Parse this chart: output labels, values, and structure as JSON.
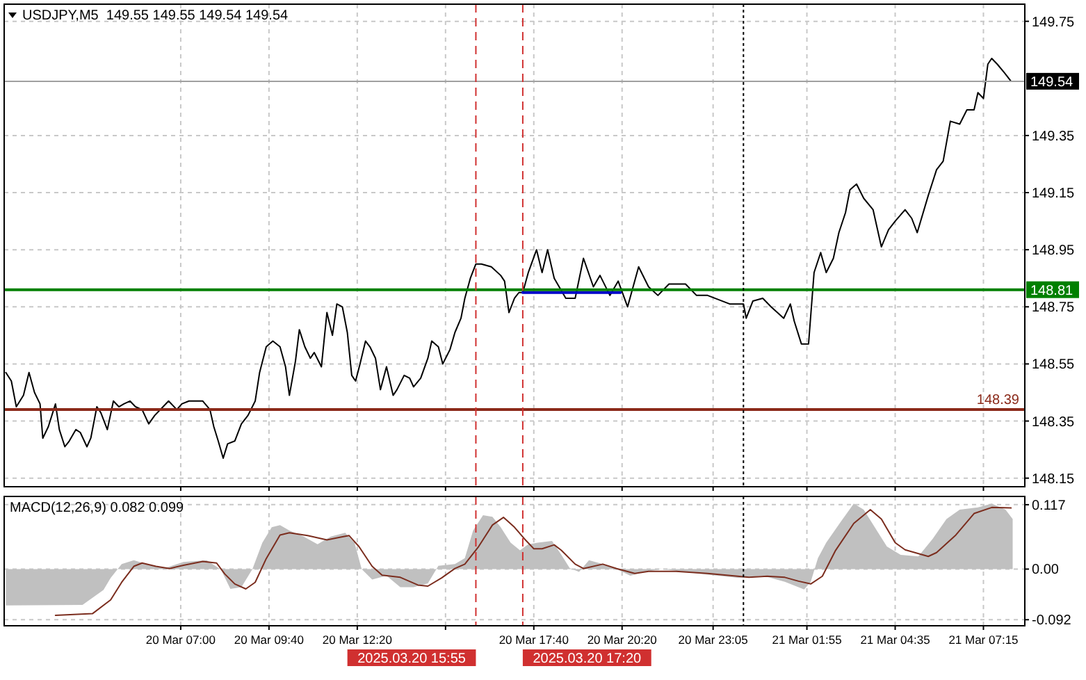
{
  "chart_data": [
    {
      "type": "line",
      "title": "USDJPY,M5  149.55 149.55 149.54 149.54",
      "xlim": [
        "2025-03-20T01:40",
        "2025-03-21T08:30"
      ],
      "xticks": [
        {
          "value": "2025-03-20T07:00",
          "label": null
        },
        {
          "value": "2025-03-20T09:40",
          "label": null
        },
        {
          "value": "2025-03-20T12:20",
          "label": null
        },
        {
          "value": "2025-03-20T15:00",
          "label": null
        },
        {
          "value": "2025-03-20T17:40",
          "label": null
        },
        {
          "value": "2025-03-20T20:20",
          "label": null
        },
        {
          "value": "2025-03-20T23:05",
          "label": null
        },
        {
          "value": "2025-03-21T01:55",
          "label": null
        },
        {
          "value": "2025-03-21T04:35",
          "label": null
        },
        {
          "value": "2025-03-21T07:15",
          "label": null
        }
      ],
      "ylim": [
        148.12,
        149.81
      ],
      "yticks": [
        148.15,
        148.35,
        148.55,
        148.75,
        148.95,
        149.15,
        149.35,
        149.75
      ],
      "grid": true,
      "tick_labels": "y",
      "series": [
        {
          "color": "#000000",
          "x": [
            "2025-03-20T01:43",
            "2025-03-20T01:53",
            "2025-03-20T02:02",
            "2025-03-20T02:15",
            "2025-03-20T02:25",
            "2025-03-20T02:35",
            "2025-03-20T02:45",
            "2025-03-20T02:50",
            "2025-03-20T03:00",
            "2025-03-20T03:13",
            "2025-03-20T03:20",
            "2025-03-20T03:30",
            "2025-03-20T03:38",
            "2025-03-20T03:50",
            "2025-03-20T03:58",
            "2025-03-20T04:10",
            "2025-03-20T04:17",
            "2025-03-20T04:28",
            "2025-03-20T04:35",
            "2025-03-20T04:47",
            "2025-03-20T04:58",
            "2025-03-20T05:08",
            "2025-03-20T05:17",
            "2025-03-20T05:28",
            "2025-03-20T05:38",
            "2025-03-20T05:50",
            "2025-03-20T06:02",
            "2025-03-20T06:13",
            "2025-03-20T06:28",
            "2025-03-20T06:38",
            "2025-03-20T06:53",
            "2025-03-20T07:02",
            "2025-03-20T07:15",
            "2025-03-20T07:28",
            "2025-03-20T07:40",
            "2025-03-20T07:53",
            "2025-03-20T08:00",
            "2025-03-20T08:08",
            "2025-03-20T08:17",
            "2025-03-20T08:25",
            "2025-03-20T08:38",
            "2025-03-20T08:50",
            "2025-03-20T09:02",
            "2025-03-20T09:15",
            "2025-03-20T09:23",
            "2025-03-20T09:35",
            "2025-03-20T09:47",
            "2025-03-20T10:00",
            "2025-03-20T10:10",
            "2025-03-20T10:17",
            "2025-03-20T10:28",
            "2025-03-20T10:35",
            "2025-03-20T10:45",
            "2025-03-20T10:55",
            "2025-03-20T11:02",
            "2025-03-20T11:15",
            "2025-03-20T11:25",
            "2025-03-20T11:35",
            "2025-03-20T11:43",
            "2025-03-20T11:53",
            "2025-03-20T12:02",
            "2025-03-20T12:10",
            "2025-03-20T12:17",
            "2025-03-20T12:25",
            "2025-03-20T12:35",
            "2025-03-20T12:43",
            "2025-03-20T12:53",
            "2025-03-20T13:02",
            "2025-03-20T13:13",
            "2025-03-20T13:25",
            "2025-03-20T13:32",
            "2025-03-20T13:45",
            "2025-03-20T13:55",
            "2025-03-20T14:02",
            "2025-03-20T14:15",
            "2025-03-20T14:28",
            "2025-03-20T14:35",
            "2025-03-20T14:47",
            "2025-03-20T14:55",
            "2025-03-20T15:08",
            "2025-03-20T15:17",
            "2025-03-20T15:28",
            "2025-03-20T15:35",
            "2025-03-20T15:45",
            "2025-03-20T15:55",
            "2025-03-20T16:05",
            "2025-03-20T16:23",
            "2025-03-20T16:40",
            "2025-03-20T16:47",
            "2025-03-20T16:55",
            "2025-03-20T17:05",
            "2025-03-20T17:13",
            "2025-03-20T17:20",
            "2025-03-20T17:30",
            "2025-03-20T17:45",
            "2025-03-20T17:55",
            "2025-03-20T18:05",
            "2025-03-20T18:17",
            "2025-03-20T18:38",
            "2025-03-20T18:55",
            "2025-03-20T19:10",
            "2025-03-20T19:28",
            "2025-03-20T19:40",
            "2025-03-20T19:58",
            "2025-03-20T20:13",
            "2025-03-20T20:30",
            "2025-03-20T20:50",
            "2025-03-20T21:08",
            "2025-03-20T21:25",
            "2025-03-20T21:45",
            "2025-03-20T22:15",
            "2025-03-20T22:35",
            "2025-03-20T22:55",
            "2025-03-20T23:35",
            "2025-03-21T00:00",
            "2025-03-21T00:05",
            "2025-03-21T00:17",
            "2025-03-21T00:35",
            "2025-03-21T00:50",
            "2025-03-21T01:13",
            "2025-03-21T01:25",
            "2025-03-21T01:32",
            "2025-03-21T01:45",
            "2025-03-21T01:58",
            "2025-03-21T02:08",
            "2025-03-21T02:20",
            "2025-03-21T02:30",
            "2025-03-21T02:43",
            "2025-03-21T02:53",
            "2025-03-21T03:05",
            "2025-03-21T03:13",
            "2025-03-21T03:25",
            "2025-03-21T03:38",
            "2025-03-21T03:55",
            "2025-03-21T04:10",
            "2025-03-21T04:23",
            "2025-03-21T04:35",
            "2025-03-21T04:53",
            "2025-03-21T05:05",
            "2025-03-21T05:15",
            "2025-03-21T05:35",
            "2025-03-21T05:50",
            "2025-03-21T06:02",
            "2025-03-21T06:15",
            "2025-03-21T06:32",
            "2025-03-21T06:45",
            "2025-03-21T06:58",
            "2025-03-21T07:05",
            "2025-03-21T07:15",
            "2025-03-21T07:23",
            "2025-03-21T07:30",
            "2025-03-21T07:40",
            "2025-03-21T07:53",
            "2025-03-21T08:05"
          ],
          "values": [
            148.52,
            148.49,
            148.4,
            148.44,
            148.52,
            148.45,
            148.41,
            148.29,
            148.33,
            148.41,
            148.32,
            148.26,
            148.28,
            148.32,
            148.31,
            148.26,
            148.29,
            148.4,
            148.38,
            148.32,
            148.42,
            148.4,
            148.41,
            148.42,
            148.4,
            148.39,
            148.34,
            148.37,
            148.4,
            148.42,
            148.39,
            148.41,
            148.42,
            148.42,
            148.42,
            148.39,
            148.33,
            148.28,
            148.22,
            148.27,
            148.28,
            148.34,
            148.37,
            148.42,
            148.52,
            148.61,
            148.63,
            148.61,
            148.54,
            148.44,
            148.56,
            148.67,
            148.61,
            148.57,
            148.59,
            148.54,
            148.73,
            148.65,
            148.76,
            148.75,
            148.66,
            148.51,
            148.49,
            148.55,
            148.63,
            148.61,
            148.57,
            148.46,
            148.54,
            148.44,
            148.46,
            148.51,
            148.5,
            148.47,
            148.5,
            148.57,
            148.63,
            148.61,
            148.55,
            148.6,
            148.66,
            148.71,
            148.78,
            148.85,
            148.9,
            148.9,
            148.89,
            148.86,
            148.84,
            148.73,
            148.78,
            148.8,
            148.8,
            148.87,
            148.95,
            148.87,
            148.95,
            148.85,
            148.78,
            148.78,
            148.92,
            148.82,
            148.86,
            148.79,
            148.84,
            148.75,
            148.89,
            148.82,
            148.79,
            148.83,
            148.83,
            148.79,
            148.79,
            148.76,
            148.76,
            148.71,
            148.77,
            148.78,
            148.75,
            148.71,
            148.76,
            148.7,
            148.62,
            148.62,
            148.87,
            148.94,
            148.87,
            148.92,
            149.01,
            149.08,
            149.16,
            149.18,
            149.13,
            149.09,
            148.96,
            149.02,
            149.05,
            149.09,
            149.06,
            149.01,
            149.14,
            149.23,
            149.26,
            149.4,
            149.39,
            149.44,
            149.44,
            149.5,
            149.48,
            149.6,
            149.62,
            149.6,
            149.57,
            149.54
          ]
        },
        {
          "color": "#0000c8",
          "x": [
            "2025-03-20T17:20",
            "2025-03-20T20:17"
          ],
          "values": [
            148.8,
            148.8
          ]
        }
      ],
      "ref_lines": [
        {
          "axis": "y",
          "value": 149.54,
          "label": "149.54",
          "color": "#a0a0a0",
          "line_style": "solid"
        },
        {
          "axis": "y",
          "value": 148.81,
          "label": "148.81",
          "color": "#008000",
          "line_style": "solid"
        },
        {
          "axis": "y",
          "value": 148.39,
          "label": "148.39",
          "color": "#8b2a1a",
          "line_style": "solid"
        },
        {
          "axis": "x",
          "value": "2025-03-20T15:55",
          "color": "#d03030",
          "line_style": "dashed"
        },
        {
          "axis": "x",
          "value": "2025-03-20T17:20",
          "color": "#d03030",
          "line_style": "dashed"
        },
        {
          "axis": "x",
          "value": "2025-03-21T00:00",
          "color": "#000000",
          "line_style": "dotted"
        }
      ]
    },
    {
      "type": "area",
      "title": "MACD(12,26,9) 0.082 0.099",
      "xlim": [
        "2025-03-20T01:40",
        "2025-03-21T08:30"
      ],
      "xticks": [
        {
          "value": "2025-03-20T07:00",
          "label": "20 Mar 07:00"
        },
        {
          "value": "2025-03-20T09:40",
          "label": "20 Mar 09:40"
        },
        {
          "value": "2025-03-20T12:20",
          "label": "20 Mar 12:20"
        },
        {
          "value": "2025-03-20T15:00",
          "label": null
        },
        {
          "value": "2025-03-20T17:40",
          "label": "20 Mar 17:40"
        },
        {
          "value": "2025-03-20T20:20",
          "label": "20 Mar 20:20"
        },
        {
          "value": "2025-03-20T23:05",
          "label": "20 Mar 23:05"
        },
        {
          "value": "2025-03-21T01:55",
          "label": "21 Mar 01:55"
        },
        {
          "value": "2025-03-21T04:35",
          "label": "21 Mar 04:35"
        },
        {
          "value": "2025-03-21T07:15",
          "label": "21 Mar 07:15"
        }
      ],
      "ylim": [
        -0.103,
        0.132
      ],
      "yticks": [
        {
          "value": -0.092,
          "label": "-0.092"
        },
        {
          "value": 0,
          "label": "0.00"
        },
        {
          "value": 0.117,
          "label": "0.117"
        }
      ],
      "grid": true,
      "series": [
        {
          "color": "#c0c0c0",
          "x": [
            "2025-03-20T01:43",
            "2025-03-20T04:02",
            "2025-03-20T04:40",
            "2025-03-20T04:53",
            "2025-03-20T05:13",
            "2025-03-20T05:35",
            "2025-03-20T06:08",
            "2025-03-20T06:32",
            "2025-03-20T07:05",
            "2025-03-20T07:47",
            "2025-03-20T08:13",
            "2025-03-20T08:30",
            "2025-03-20T08:50",
            "2025-03-20T09:10",
            "2025-03-20T09:28",
            "2025-03-20T09:45",
            "2025-03-20T10:00",
            "2025-03-20T10:17",
            "2025-03-20T10:43",
            "2025-03-20T11:08",
            "2025-03-20T11:32",
            "2025-03-20T11:58",
            "2025-03-20T12:15",
            "2025-03-20T12:28",
            "2025-03-20T12:47",
            "2025-03-20T13:13",
            "2025-03-20T13:38",
            "2025-03-20T14:02",
            "2025-03-20T14:28",
            "2025-03-20T14:47",
            "2025-03-20T15:17",
            "2025-03-20T15:35",
            "2025-03-20T15:50",
            "2025-03-20T16:08",
            "2025-03-20T16:25",
            "2025-03-20T16:40",
            "2025-03-20T16:58",
            "2025-03-20T17:15",
            "2025-03-20T17:30",
            "2025-03-20T17:47",
            "2025-03-20T18:13",
            "2025-03-20T18:30",
            "2025-03-20T18:45",
            "2025-03-20T19:02",
            "2025-03-20T19:20",
            "2025-03-20T19:45",
            "2025-03-20T20:10",
            "2025-03-20T20:35",
            "2025-03-20T21:00",
            "2025-03-20T21:32",
            "2025-03-20T22:15",
            "2025-03-20T22:55",
            "2025-03-20T23:53",
            "2025-03-21T00:35",
            "2025-03-21T01:15",
            "2025-03-21T01:50",
            "2025-03-21T02:02",
            "2025-03-21T02:15",
            "2025-03-21T02:30",
            "2025-03-21T02:55",
            "2025-03-21T03:20",
            "2025-03-21T03:38",
            "2025-03-21T03:58",
            "2025-03-21T04:20",
            "2025-03-21T04:45",
            "2025-03-21T05:17",
            "2025-03-21T05:43",
            "2025-03-21T06:08",
            "2025-03-21T06:32",
            "2025-03-21T07:05",
            "2025-03-21T07:30",
            "2025-03-21T07:55",
            "2025-03-21T08:08"
          ],
          "values": [
            -0.066,
            -0.065,
            -0.038,
            -0.016,
            0.009,
            0.016,
            0.006,
            0.002,
            0.013,
            0.016,
            -0.001,
            -0.036,
            -0.033,
            0,
            0.048,
            0.076,
            0.08,
            0.07,
            0.059,
            0.045,
            0.059,
            0.066,
            0.048,
            0,
            -0.019,
            -0.012,
            -0.033,
            -0.033,
            -0.026,
            0.006,
            0.009,
            0.02,
            0.07,
            0.098,
            0.095,
            0.076,
            0.048,
            0.034,
            0.045,
            0.048,
            0.051,
            0.026,
            0.002,
            -0.005,
            0.016,
            0.009,
            0,
            -0.012,
            -0.005,
            0,
            -0.005,
            -0.01,
            -0.016,
            -0.012,
            -0.023,
            -0.037,
            -0.023,
            0.02,
            0.048,
            0.084,
            0.119,
            0.108,
            0.076,
            0.041,
            0.026,
            0.023,
            0.055,
            0.091,
            0.108,
            0.112,
            0.119,
            0.108,
            0.091
          ]
        },
        {
          "type": "line",
          "color": "#7b2d1e",
          "x": [
            "2025-03-20T03:13",
            "2025-03-20T04:20",
            "2025-03-20T04:53",
            "2025-03-20T05:13",
            "2025-03-20T05:35",
            "2025-03-20T05:50",
            "2025-03-20T06:15",
            "2025-03-20T06:40",
            "2025-03-20T07:05",
            "2025-03-20T07:40",
            "2025-03-20T08:05",
            "2025-03-20T08:20",
            "2025-03-20T08:38",
            "2025-03-20T08:58",
            "2025-03-20T09:15",
            "2025-03-20T09:35",
            "2025-03-20T10:00",
            "2025-03-20T10:17",
            "2025-03-20T10:50",
            "2025-03-20T11:25",
            "2025-03-20T11:50",
            "2025-03-20T12:05",
            "2025-03-20T12:23",
            "2025-03-20T12:47",
            "2025-03-20T13:05",
            "2025-03-20T13:38",
            "2025-03-20T14:10",
            "2025-03-20T14:28",
            "2025-03-20T14:53",
            "2025-03-20T15:17",
            "2025-03-20T15:35",
            "2025-03-20T16:00",
            "2025-03-20T16:25",
            "2025-03-20T16:45",
            "2025-03-20T17:05",
            "2025-03-20T17:23",
            "2025-03-20T17:40",
            "2025-03-20T17:55",
            "2025-03-20T18:17",
            "2025-03-20T18:30",
            "2025-03-20T18:55",
            "2025-03-20T19:10",
            "2025-03-20T19:45",
            "2025-03-20T20:10",
            "2025-03-20T20:43",
            "2025-03-20T21:08",
            "2025-03-20T21:58",
            "2025-03-20T22:55",
            "2025-03-21T00:10",
            "2025-03-21T00:43",
            "2025-03-21T01:15",
            "2025-03-21T01:40",
            "2025-03-21T02:02",
            "2025-03-21T02:23",
            "2025-03-21T02:47",
            "2025-03-21T03:20",
            "2025-03-21T03:50",
            "2025-03-21T04:10",
            "2025-03-21T04:35",
            "2025-03-21T04:53",
            "2025-03-21T05:35",
            "2025-03-21T05:50",
            "2025-03-21T06:25",
            "2025-03-21T06:58",
            "2025-03-21T07:30",
            "2025-03-21T08:05"
          ],
          "values": [
            -0.084,
            -0.081,
            -0.056,
            -0.024,
            0.005,
            0.011,
            0.005,
            0.001,
            0.007,
            0.014,
            0.011,
            -0.009,
            -0.027,
            -0.036,
            -0.024,
            0.019,
            0.062,
            0.066,
            0.061,
            0.053,
            0.058,
            0.061,
            0.041,
            0.005,
            -0.011,
            -0.015,
            -0.029,
            -0.031,
            -0.016,
            0.001,
            0.009,
            0.041,
            0.08,
            0.094,
            0.076,
            0.055,
            0.037,
            0.037,
            0.044,
            0.034,
            0.009,
            0.001,
            0.009,
            0.001,
            -0.008,
            -0.004,
            -0.004,
            -0.008,
            -0.015,
            -0.013,
            -0.015,
            -0.022,
            -0.027,
            -0.013,
            0.034,
            0.083,
            0.108,
            0.091,
            0.048,
            0.035,
            0.023,
            0.03,
            0.062,
            0.101,
            0.112,
            0.111
          ]
        }
      ],
      "ref_lines": [
        {
          "axis": "x",
          "value": "2025-03-20T15:55",
          "label": "2025.03.20 15:55",
          "color": "#d03030",
          "line_style": "dashed"
        },
        {
          "axis": "x",
          "value": "2025-03-20T17:20",
          "label": "2025.03.20 17:20",
          "color": "#d03030",
          "line_style": "dashed"
        },
        {
          "axis": "x",
          "value": "2025-03-21T00:00",
          "color": "#000000",
          "line_style": "dotted"
        }
      ]
    }
  ]
}
